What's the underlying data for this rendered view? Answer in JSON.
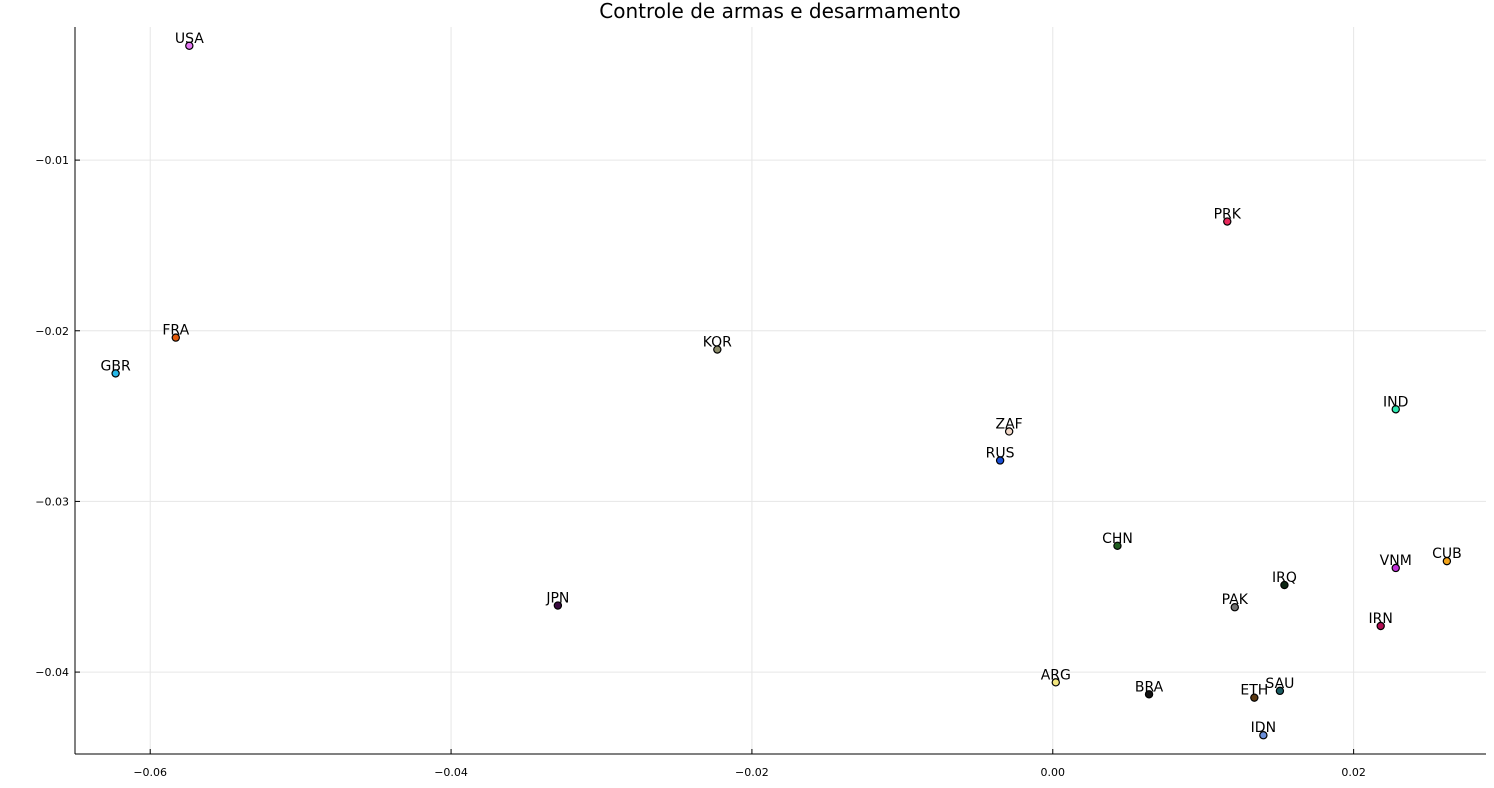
{
  "chart_data": {
    "type": "scatter",
    "title": "Controle de armas e desarmamento",
    "xlabel": "",
    "ylabel": "",
    "xlim": [
      -0.065,
      0.0288
    ],
    "ylim": [
      -0.0448,
      -0.0022
    ],
    "grid": true,
    "legend": "none",
    "x_ticks": [
      {
        "value": -0.06,
        "label": "−0.06"
      },
      {
        "value": -0.04,
        "label": "−0.04"
      },
      {
        "value": -0.02,
        "label": "−0.02"
      },
      {
        "value": 0.0,
        "label": "0.00"
      },
      {
        "value": 0.02,
        "label": "0.02"
      }
    ],
    "y_ticks": [
      {
        "value": -0.01,
        "label": "−0.01"
      },
      {
        "value": -0.02,
        "label": "−0.02"
      },
      {
        "value": -0.03,
        "label": "−0.03"
      },
      {
        "value": -0.04,
        "label": "−0.04"
      }
    ],
    "points": [
      {
        "label": "USA",
        "x": -0.0574,
        "y": -0.0033,
        "color": "#e377f2"
      },
      {
        "label": "FRA",
        "x": -0.0583,
        "y": -0.0204,
        "color": "#e35a0a"
      },
      {
        "label": "GBR",
        "x": -0.0623,
        "y": -0.0225,
        "color": "#26b8e8"
      },
      {
        "label": "KOR",
        "x": -0.0223,
        "y": -0.0211,
        "color": "#8c8c6a"
      },
      {
        "label": "PRK",
        "x": 0.0116,
        "y": -0.0136,
        "color": "#e8295c"
      },
      {
        "label": "ZAF",
        "x": -0.0029,
        "y": -0.0259,
        "color": "#f2d9c9"
      },
      {
        "label": "RUS",
        "x": -0.0035,
        "y": -0.0276,
        "color": "#1a4fd6"
      },
      {
        "label": "IND",
        "x": 0.0228,
        "y": -0.0246,
        "color": "#2ee8b0"
      },
      {
        "label": "CHN",
        "x": 0.0043,
        "y": -0.0326,
        "color": "#1f5c1f"
      },
      {
        "label": "CUB",
        "x": 0.0262,
        "y": -0.0335,
        "color": "#f2a31a"
      },
      {
        "label": "VNM",
        "x": 0.0228,
        "y": -0.0339,
        "color": "#c230d9"
      },
      {
        "label": "IRQ",
        "x": 0.0154,
        "y": -0.0349,
        "color": "#0d2614"
      },
      {
        "label": "JPN",
        "x": -0.0329,
        "y": -0.0361,
        "color": "#3a0a40"
      },
      {
        "label": "PAK",
        "x": 0.0121,
        "y": -0.0362,
        "color": "#737373"
      },
      {
        "label": "IRN",
        "x": 0.0218,
        "y": -0.0373,
        "color": "#b00d52"
      },
      {
        "label": "ARG",
        "x": 0.0002,
        "y": -0.0406,
        "color": "#f2e680"
      },
      {
        "label": "BRA",
        "x": 0.0064,
        "y": -0.0413,
        "color": "#111111"
      },
      {
        "label": "ETH",
        "x": 0.0134,
        "y": -0.0415,
        "color": "#5c3a14"
      },
      {
        "label": "SAU",
        "x": 0.0151,
        "y": -0.0411,
        "color": "#1a5c63"
      },
      {
        "label": "IDN",
        "x": 0.014,
        "y": -0.0437,
        "color": "#6b8fd9"
      }
    ]
  }
}
